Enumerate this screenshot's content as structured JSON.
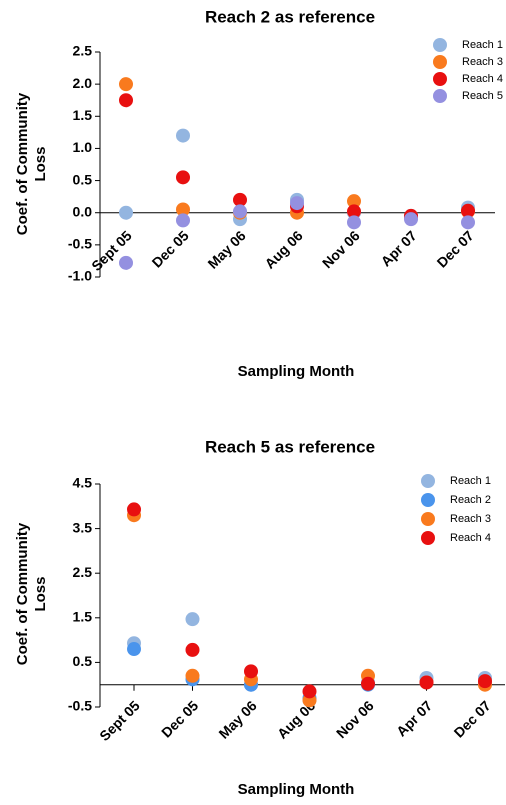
{
  "chart_data": [
    {
      "type": "scatter",
      "title": "Reach 2 as reference",
      "y_label": "Coef. of Community Loss",
      "x_label": "Sampling Month",
      "categories": [
        "Sept 05",
        "Dec 05",
        "May 06",
        "Aug 06",
        "Nov 06",
        "Apr 07",
        "Dec 07"
      ],
      "ylim": [
        -1.0,
        2.5
      ],
      "yticks": [
        {
          "value": 2.5,
          "label": "2.5"
        },
        {
          "value": 2.0,
          "label": "2.0"
        },
        {
          "value": 1.5,
          "label": "1.5"
        },
        {
          "value": 1.0,
          "label": "1.0"
        },
        {
          "value": 0.5,
          "label": "0.5"
        },
        {
          "value": 0.0,
          "label": "0.0"
        },
        {
          "value": -0.5,
          "label": "-0.5"
        },
        {
          "value": -1.0,
          "label": "-1.0"
        }
      ],
      "series": [
        {
          "name": "Reach 1",
          "color": "#93b5e0",
          "values": [
            0.0,
            1.2,
            -0.1,
            0.2,
            0.0,
            -0.05,
            0.08
          ]
        },
        {
          "name": "Reach 3",
          "color": "#f97a1e",
          "values": [
            2.0,
            0.05,
            0.0,
            0.0,
            0.18,
            -0.08,
            0.02
          ]
        },
        {
          "name": "Reach 4",
          "color": "#e81010",
          "values": [
            1.75,
            0.55,
            0.2,
            0.1,
            0.02,
            -0.05,
            0.03
          ]
        },
        {
          "name": "Reach 5",
          "color": "#9490e0",
          "values": [
            -0.78,
            -0.12,
            0.02,
            0.15,
            -0.15,
            -0.1,
            -0.15
          ]
        }
      ]
    },
    {
      "type": "scatter",
      "title": "Reach 5 as reference",
      "y_label": "Coef. of Community Loss",
      "x_label": "Sampling Month",
      "categories": [
        "Sept 05",
        "Dec 05",
        "May 06",
        "Aug 06",
        "Nov 06",
        "Apr 07",
        "Dec 07"
      ],
      "ylim": [
        -0.5,
        4.5
      ],
      "yticks": [
        4.5,
        3.5,
        2.5,
        1.5,
        0.5,
        -0.5
      ],
      "series": [
        {
          "name": "Reach 1",
          "color": "#93b5e0",
          "values": [
            0.93,
            1.47,
            0.0,
            -0.35,
            0.05,
            0.15,
            0.15
          ]
        },
        {
          "name": "Reach 2",
          "color": "#4a94ec",
          "values": [
            0.8,
            0.12,
            0.0,
            -0.3,
            0.0,
            0.05,
            0.05
          ]
        },
        {
          "name": "Reach 3",
          "color": "#f97a1e",
          "values": [
            3.8,
            0.2,
            0.12,
            -0.35,
            0.2,
            0.05,
            0.0
          ]
        },
        {
          "name": "Reach 4",
          "color": "#e81010",
          "values": [
            3.93,
            0.78,
            0.3,
            -0.15,
            0.02,
            0.05,
            0.08
          ]
        }
      ]
    }
  ]
}
